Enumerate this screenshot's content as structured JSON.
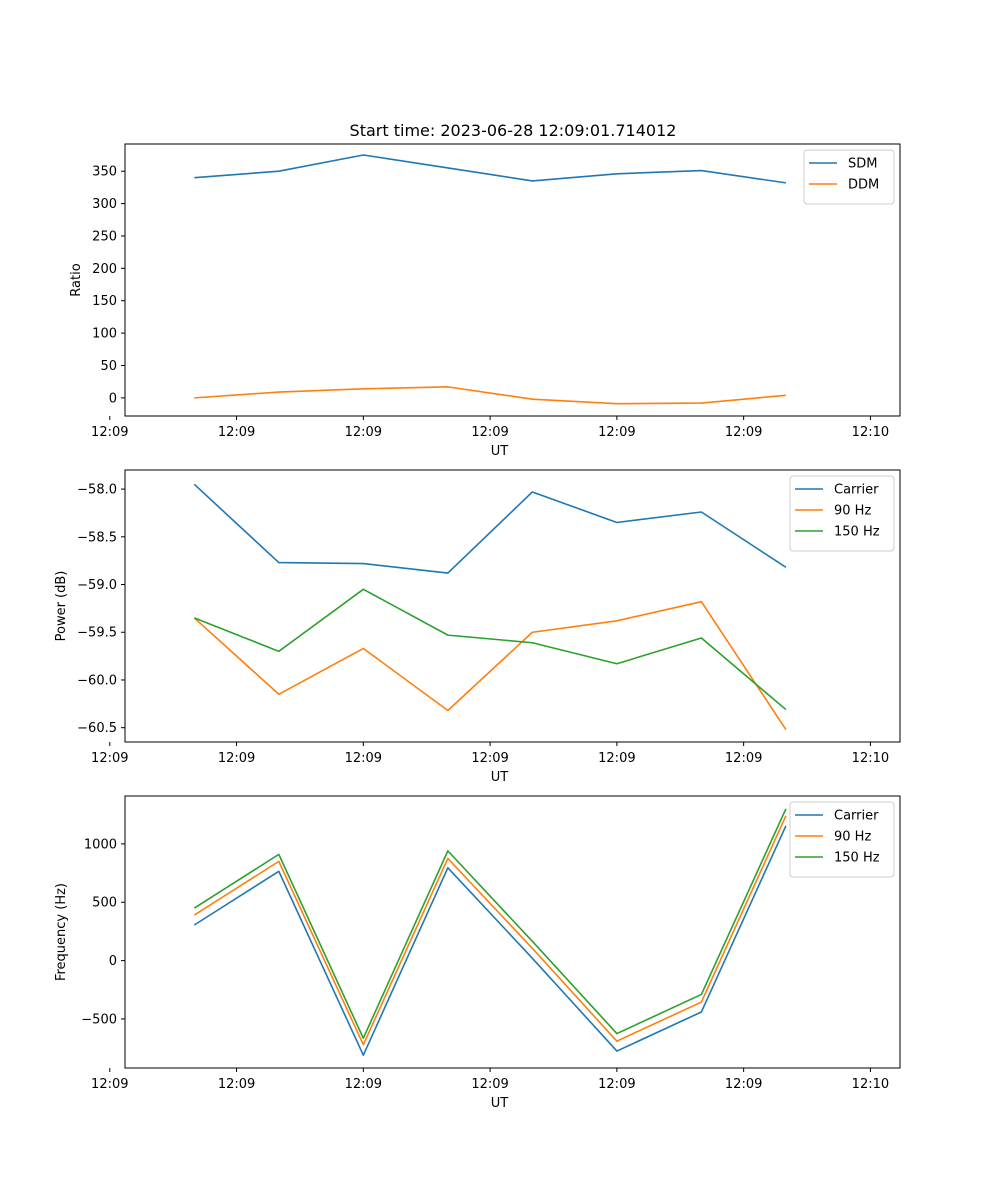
{
  "figure_title": "Start time: 2023-06-28 12:09:01.714012",
  "chart_data": [
    {
      "type": "line",
      "title": "Start time: 2023-06-28 12:09:01.714012",
      "xlabel": "UT",
      "ylabel": "Ratio",
      "x": [
        1,
        2,
        3,
        4,
        5,
        6,
        7,
        8
      ],
      "xlim": [
        0.18,
        9.35
      ],
      "xticks": [
        0,
        1.5,
        3,
        4.5,
        6,
        7.5,
        9
      ],
      "xtick_labels": [
        "12:09",
        "12:09",
        "12:09",
        "12:09",
        "12:09",
        "12:09",
        "12:10"
      ],
      "ylim": [
        -28,
        392
      ],
      "yticks": [
        0,
        50,
        100,
        150,
        200,
        250,
        300,
        350
      ],
      "ytick_labels": [
        "0",
        "50",
        "100",
        "150",
        "200",
        "250",
        "300",
        "350"
      ],
      "legend_position": "top-right",
      "series": [
        {
          "name": "SDM",
          "color": "#1f77b4",
          "values": [
            340,
            350,
            375,
            355,
            335,
            346,
            351,
            332
          ]
        },
        {
          "name": "DDM",
          "color": "#ff7f0e",
          "values": [
            0,
            9,
            14,
            17,
            -2,
            -9,
            -8,
            4
          ]
        }
      ]
    },
    {
      "type": "line",
      "xlabel": "UT",
      "ylabel": "Power (dB)",
      "x": [
        1,
        2,
        3,
        4,
        5,
        6,
        7,
        8
      ],
      "xlim": [
        0.18,
        9.35
      ],
      "xticks": [
        0,
        1.5,
        3,
        4.5,
        6,
        7.5,
        9
      ],
      "xtick_labels": [
        "12:09",
        "12:09",
        "12:09",
        "12:09",
        "12:09",
        "12:09",
        "12:10"
      ],
      "ylim": [
        -60.65,
        -57.8
      ],
      "yticks": [
        -58.0,
        -58.5,
        -59.0,
        -59.5,
        -60.0,
        -60.5
      ],
      "ytick_labels": [
        "−58.0",
        "−58.5",
        "−59.0",
        "−59.5",
        "−60.0",
        "−60.5"
      ],
      "legend_position": "top-right",
      "series": [
        {
          "name": "Carrier",
          "color": "#1f77b4",
          "values": [
            -57.95,
            -58.77,
            -58.78,
            -58.88,
            -58.03,
            -58.35,
            -58.24,
            -58.82
          ]
        },
        {
          "name": "90 Hz",
          "color": "#ff7f0e",
          "values": [
            -59.35,
            -60.15,
            -59.67,
            -60.32,
            -59.5,
            -59.38,
            -59.18,
            -60.52
          ]
        },
        {
          "name": "150 Hz",
          "color": "#2ca02c",
          "values": [
            -59.35,
            -59.7,
            -59.05,
            -59.53,
            -59.61,
            -59.83,
            -59.56,
            -60.31
          ]
        }
      ]
    },
    {
      "type": "line",
      "xlabel": "UT",
      "ylabel": "Frequency (Hz)",
      "x": [
        1,
        2,
        3,
        4,
        5,
        6,
        7,
        8
      ],
      "xlim": [
        0.18,
        9.35
      ],
      "xticks": [
        0,
        1.5,
        3,
        4.5,
        6,
        7.5,
        9
      ],
      "xtick_labels": [
        "12:09",
        "12:09",
        "12:09",
        "12:09",
        "12:09",
        "12:09",
        "12:10"
      ],
      "ylim": [
        -920,
        1410
      ],
      "yticks": [
        -500,
        0,
        500,
        1000
      ],
      "ytick_labels": [
        "−500",
        "0",
        "500",
        "1000"
      ],
      "legend_position": "top-right",
      "series": [
        {
          "name": "Carrier",
          "color": "#1f77b4",
          "values": [
            305,
            765,
            -810,
            795,
            20,
            -775,
            -440,
            1155
          ]
        },
        {
          "name": "90 Hz",
          "color": "#ff7f0e",
          "values": [
            390,
            850,
            -720,
            875,
            105,
            -690,
            -355,
            1240
          ]
        },
        {
          "name": "150 Hz",
          "color": "#2ca02c",
          "values": [
            450,
            910,
            -665,
            940,
            165,
            -625,
            -290,
            1300
          ]
        }
      ]
    }
  ]
}
